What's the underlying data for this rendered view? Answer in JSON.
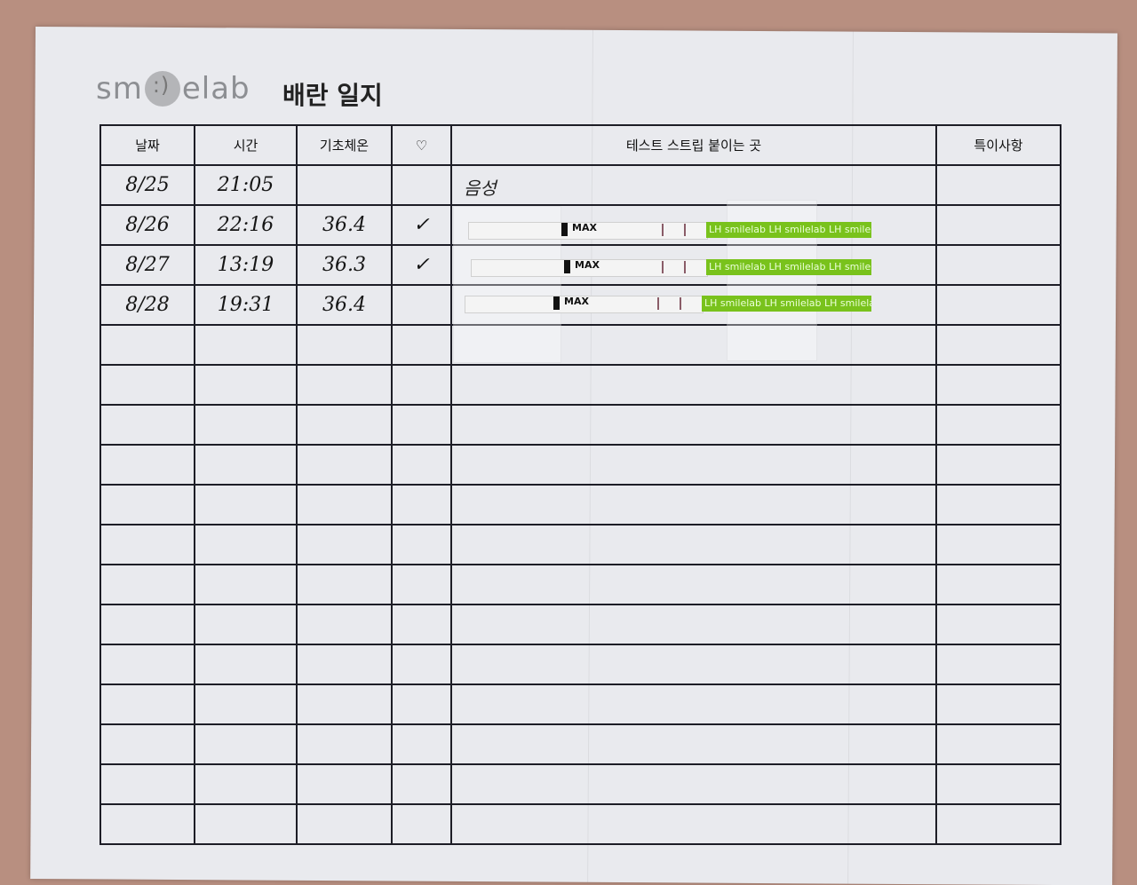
{
  "logo": {
    "text": "smilelab"
  },
  "title": "배란 일지",
  "columns": [
    "날짜",
    "시간",
    "기초체온",
    "♡",
    "테스트 스트립 붙이는 곳",
    "특이사항"
  ],
  "rows": [
    {
      "date": "8/25",
      "time": "21:05",
      "temp": "",
      "heart": "",
      "strip_note": "음성"
    },
    {
      "date": "8/26",
      "time": "22:16",
      "temp": "36.4",
      "heart": "✓",
      "strip_note": ""
    },
    {
      "date": "8/27",
      "time": "13:19",
      "temp": "36.3",
      "heart": "✓",
      "strip_note": ""
    },
    {
      "date": "8/28",
      "time": "19:31",
      "temp": "36.4",
      "heart": "",
      "strip_note": ""
    }
  ],
  "strips": [
    {
      "label": "MAX",
      "brand": "LH smilelab LH smilelab LH smilelab LH"
    },
    {
      "label": "MAX",
      "brand": "LH smilelab LH smilelab LH smilelab LH"
    },
    {
      "label": "MAX",
      "brand": "LH smilelab LH smilelab LH smilelab LH"
    }
  ],
  "colors": {
    "background": "#b88f80",
    "paper": "#e9eaee",
    "strip_green": "#79c21c"
  }
}
